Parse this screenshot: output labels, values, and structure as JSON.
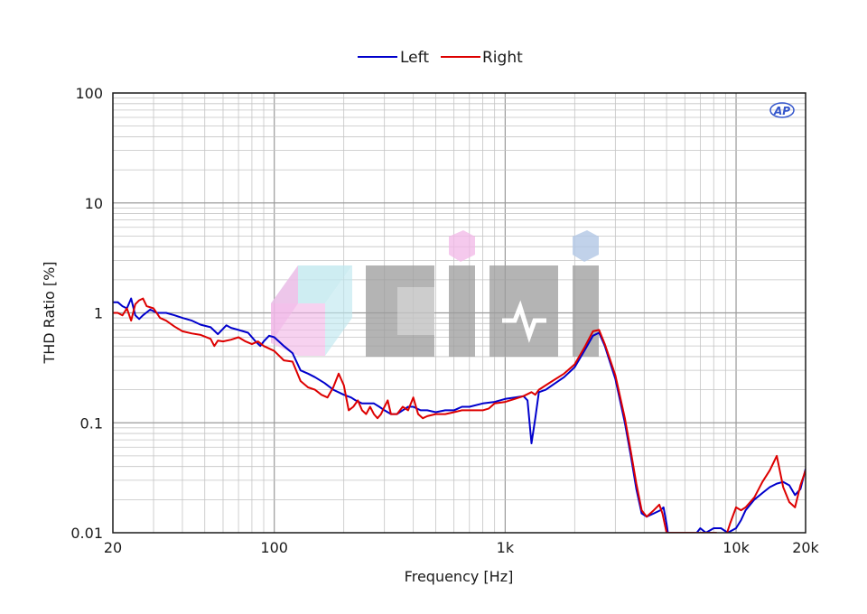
{
  "chart_data": {
    "type": "line",
    "title": "",
    "xlabel": "Frequency [Hz]",
    "ylabel": "THD Ratio [%]",
    "x_scale": "log",
    "y_scale": "log",
    "xlim": [
      20,
      20000
    ],
    "ylim": [
      0.01,
      100
    ],
    "x_ticks": [
      {
        "value": 20,
        "label": "20"
      },
      {
        "value": 100,
        "label": "100"
      },
      {
        "value": 1000,
        "label": "1k"
      },
      {
        "value": 10000,
        "label": "10k"
      },
      {
        "value": 20000,
        "label": "20k"
      }
    ],
    "y_ticks": [
      {
        "value": 100,
        "label": "100"
      },
      {
        "value": 10,
        "label": "10"
      },
      {
        "value": 1,
        "label": "1"
      },
      {
        "value": 0.1,
        "label": "0.1"
      },
      {
        "value": 0.01,
        "label": "0.01"
      }
    ],
    "grid": true,
    "legend_position": "top-center",
    "series": [
      {
        "name": "Left",
        "color": "#0000cc",
        "points": [
          [
            20,
            1.25
          ],
          [
            21,
            1.25
          ],
          [
            22,
            1.15
          ],
          [
            23,
            1.1
          ],
          [
            24,
            1.35
          ],
          [
            25,
            0.95
          ],
          [
            26,
            0.88
          ],
          [
            27,
            0.95
          ],
          [
            29,
            1.07
          ],
          [
            31,
            1.0
          ],
          [
            34,
            1.0
          ],
          [
            37,
            0.95
          ],
          [
            40,
            0.9
          ],
          [
            44,
            0.85
          ],
          [
            48,
            0.78
          ],
          [
            53,
            0.74
          ],
          [
            57,
            0.64
          ],
          [
            62,
            0.77
          ],
          [
            65,
            0.73
          ],
          [
            70,
            0.7
          ],
          [
            77,
            0.66
          ],
          [
            83,
            0.55
          ],
          [
            87,
            0.5
          ],
          [
            90,
            0.55
          ],
          [
            95,
            0.62
          ],
          [
            100,
            0.6
          ],
          [
            110,
            0.5
          ],
          [
            120,
            0.43
          ],
          [
            130,
            0.3
          ],
          [
            140,
            0.28
          ],
          [
            150,
            0.26
          ],
          [
            165,
            0.23
          ],
          [
            180,
            0.2
          ],
          [
            200,
            0.18
          ],
          [
            215,
            0.17
          ],
          [
            225,
            0.16
          ],
          [
            240,
            0.15
          ],
          [
            255,
            0.15
          ],
          [
            270,
            0.15
          ],
          [
            285,
            0.14
          ],
          [
            300,
            0.13
          ],
          [
            320,
            0.12
          ],
          [
            340,
            0.12
          ],
          [
            360,
            0.13
          ],
          [
            380,
            0.14
          ],
          [
            400,
            0.14
          ],
          [
            430,
            0.13
          ],
          [
            460,
            0.13
          ],
          [
            500,
            0.125
          ],
          [
            550,
            0.13
          ],
          [
            600,
            0.13
          ],
          [
            650,
            0.14
          ],
          [
            700,
            0.14
          ],
          [
            800,
            0.15
          ],
          [
            900,
            0.155
          ],
          [
            1000,
            0.165
          ],
          [
            1100,
            0.17
          ],
          [
            1200,
            0.175
          ],
          [
            1250,
            0.16
          ],
          [
            1300,
            0.065
          ],
          [
            1350,
            0.11
          ],
          [
            1400,
            0.19
          ],
          [
            1500,
            0.2
          ],
          [
            1600,
            0.22
          ],
          [
            1800,
            0.26
          ],
          [
            2000,
            0.32
          ],
          [
            2200,
            0.45
          ],
          [
            2400,
            0.62
          ],
          [
            2550,
            0.66
          ],
          [
            2700,
            0.5
          ],
          [
            3000,
            0.25
          ],
          [
            3300,
            0.1
          ],
          [
            3500,
            0.05
          ],
          [
            3700,
            0.025
          ],
          [
            3900,
            0.015
          ],
          [
            4100,
            0.014
          ],
          [
            4400,
            0.015
          ],
          [
            4700,
            0.016
          ],
          [
            4850,
            0.017
          ],
          [
            5000,
            0.012
          ],
          [
            5100,
            0.009
          ],
          [
            6500,
            0.009
          ],
          [
            7000,
            0.011
          ],
          [
            7400,
            0.01
          ],
          [
            8000,
            0.011
          ],
          [
            8600,
            0.011
          ],
          [
            9200,
            0.01
          ],
          [
            10000,
            0.011
          ],
          [
            10500,
            0.013
          ],
          [
            11000,
            0.016
          ],
          [
            12000,
            0.02
          ],
          [
            13000,
            0.023
          ],
          [
            14000,
            0.026
          ],
          [
            15000,
            0.028
          ],
          [
            16000,
            0.029
          ],
          [
            17000,
            0.027
          ],
          [
            18000,
            0.022
          ],
          [
            19000,
            0.025
          ],
          [
            20000,
            0.038
          ]
        ]
      },
      {
        "name": "Right",
        "color": "#dd0000",
        "points": [
          [
            20,
            1.0
          ],
          [
            21,
            1.0
          ],
          [
            22,
            0.95
          ],
          [
            23,
            1.1
          ],
          [
            24,
            0.85
          ],
          [
            25,
            1.2
          ],
          [
            26,
            1.3
          ],
          [
            27,
            1.35
          ],
          [
            28,
            1.15
          ],
          [
            30,
            1.1
          ],
          [
            32,
            0.9
          ],
          [
            34,
            0.85
          ],
          [
            37,
            0.75
          ],
          [
            40,
            0.68
          ],
          [
            44,
            0.65
          ],
          [
            48,
            0.63
          ],
          [
            53,
            0.58
          ],
          [
            55,
            0.5
          ],
          [
            57,
            0.56
          ],
          [
            60,
            0.55
          ],
          [
            65,
            0.57
          ],
          [
            70,
            0.6
          ],
          [
            75,
            0.55
          ],
          [
            80,
            0.52
          ],
          [
            85,
            0.55
          ],
          [
            90,
            0.5
          ],
          [
            100,
            0.45
          ],
          [
            110,
            0.37
          ],
          [
            120,
            0.36
          ],
          [
            130,
            0.24
          ],
          [
            140,
            0.21
          ],
          [
            150,
            0.2
          ],
          [
            160,
            0.18
          ],
          [
            170,
            0.17
          ],
          [
            180,
            0.21
          ],
          [
            190,
            0.28
          ],
          [
            200,
            0.22
          ],
          [
            210,
            0.13
          ],
          [
            220,
            0.14
          ],
          [
            230,
            0.16
          ],
          [
            240,
            0.13
          ],
          [
            250,
            0.12
          ],
          [
            260,
            0.14
          ],
          [
            270,
            0.12
          ],
          [
            280,
            0.11
          ],
          [
            290,
            0.12
          ],
          [
            300,
            0.14
          ],
          [
            310,
            0.16
          ],
          [
            320,
            0.12
          ],
          [
            340,
            0.12
          ],
          [
            360,
            0.14
          ],
          [
            380,
            0.13
          ],
          [
            400,
            0.17
          ],
          [
            420,
            0.12
          ],
          [
            440,
            0.11
          ],
          [
            460,
            0.115
          ],
          [
            500,
            0.12
          ],
          [
            550,
            0.12
          ],
          [
            600,
            0.125
          ],
          [
            650,
            0.13
          ],
          [
            700,
            0.13
          ],
          [
            800,
            0.13
          ],
          [
            850,
            0.135
          ],
          [
            900,
            0.15
          ],
          [
            1000,
            0.155
          ],
          [
            1100,
            0.165
          ],
          [
            1200,
            0.175
          ],
          [
            1300,
            0.19
          ],
          [
            1350,
            0.18
          ],
          [
            1400,
            0.2
          ],
          [
            1500,
            0.22
          ],
          [
            1600,
            0.24
          ],
          [
            1800,
            0.28
          ],
          [
            2000,
            0.34
          ],
          [
            2200,
            0.48
          ],
          [
            2400,
            0.68
          ],
          [
            2550,
            0.7
          ],
          [
            2700,
            0.52
          ],
          [
            3000,
            0.27
          ],
          [
            3300,
            0.11
          ],
          [
            3500,
            0.055
          ],
          [
            3700,
            0.028
          ],
          [
            3900,
            0.016
          ],
          [
            4100,
            0.014
          ],
          [
            4400,
            0.016
          ],
          [
            4650,
            0.018
          ],
          [
            4800,
            0.015
          ],
          [
            5000,
            0.01
          ],
          [
            8200,
            0.01
          ],
          [
            9000,
            0.009
          ],
          [
            9400,
            0.012
          ],
          [
            10000,
            0.017
          ],
          [
            10500,
            0.016
          ],
          [
            11000,
            0.017
          ],
          [
            12000,
            0.021
          ],
          [
            13000,
            0.029
          ],
          [
            14000,
            0.037
          ],
          [
            15000,
            0.05
          ],
          [
            16000,
            0.026
          ],
          [
            17000,
            0.019
          ],
          [
            18000,
            0.017
          ],
          [
            19000,
            0.027
          ],
          [
            20000,
            0.037
          ]
        ]
      }
    ]
  },
  "watermark": {
    "logo_name": "cinmo-logo",
    "colors": [
      "#f2b8e8",
      "#bfe8ef",
      "#9e9e9e",
      "#b3c8e6"
    ]
  },
  "ap_logo": {
    "text": "AP",
    "color": "#3355cc"
  }
}
